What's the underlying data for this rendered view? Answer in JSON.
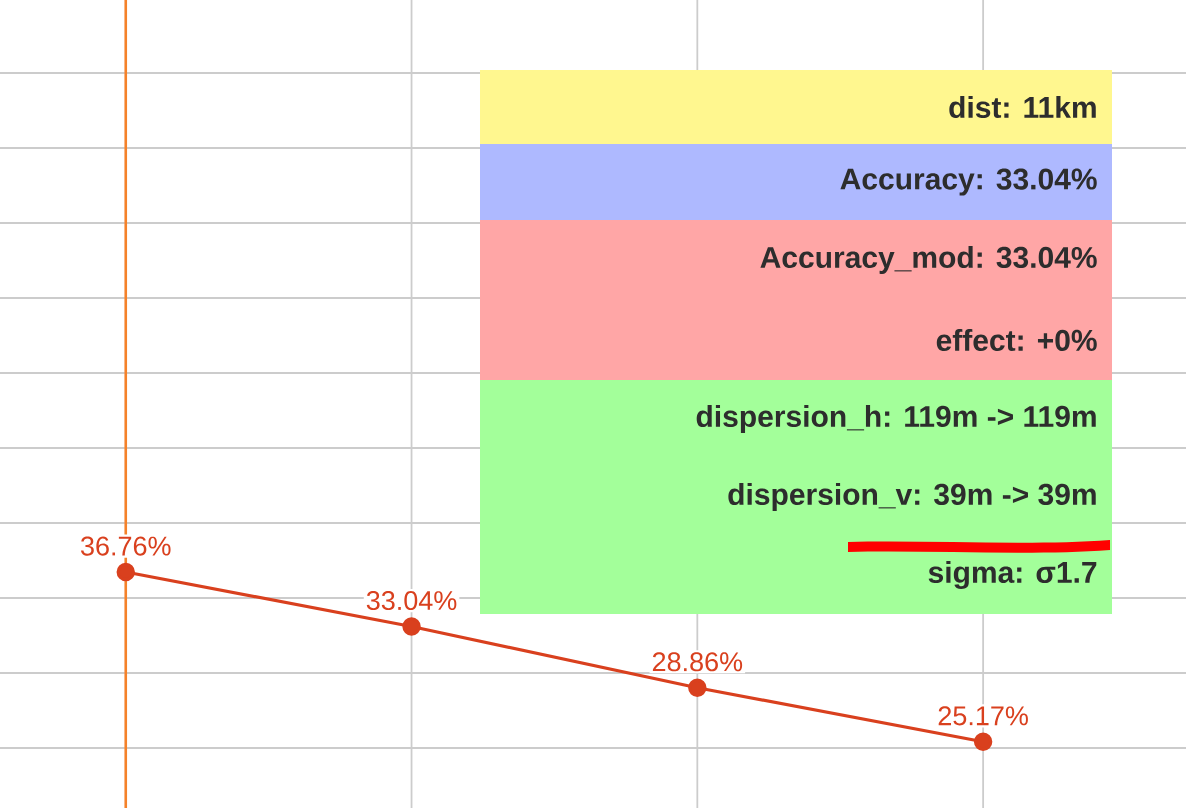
{
  "chart_data": {
    "type": "line",
    "categories": [
      null,
      null,
      null,
      null
    ],
    "values": [
      36.76,
      33.04,
      28.86,
      25.17
    ],
    "value_labels": [
      "36.76%",
      "33.04%",
      "28.86%",
      "25.17%"
    ],
    "color": "#d9401e",
    "marker": "circle",
    "grid": true,
    "annotations": [
      "dist: 11km",
      "Accuracy: 33.04%",
      "Accuracy_mod: 33.04%",
      "effect: +0%",
      "dispersion_h: 119m -> 119m",
      "dispersion_v: 39m -> 39m",
      "sigma: σ1.7"
    ]
  }
}
